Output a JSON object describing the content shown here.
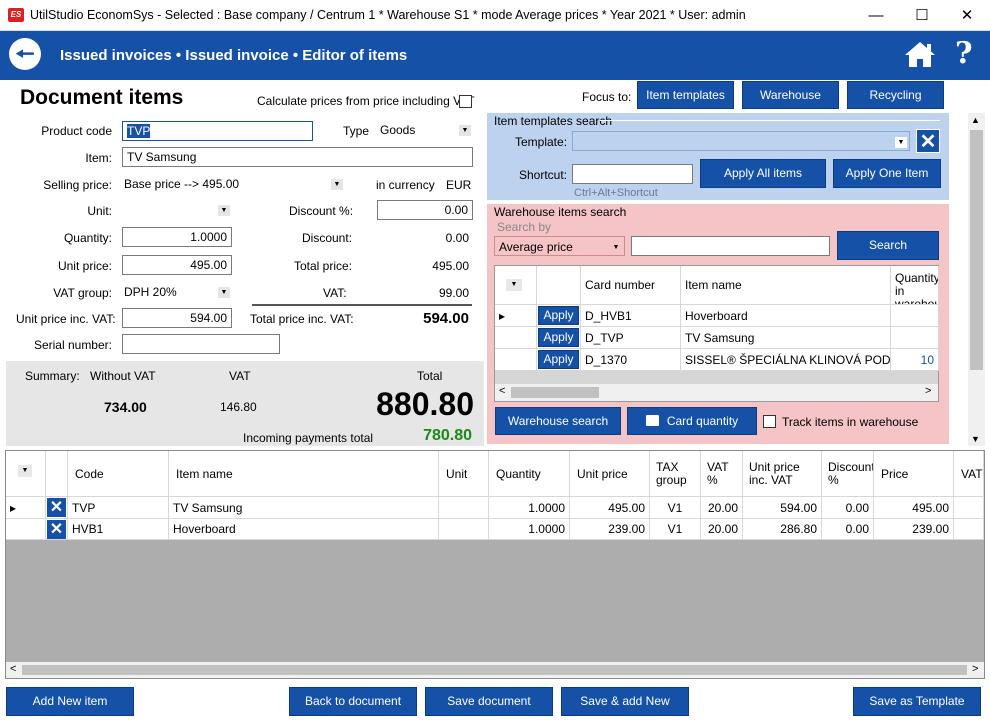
{
  "window": {
    "app_icon": "ES",
    "title": "UtilStudio EconomSys - Selected : Base company / Centrum 1 * Warehouse S1 * mode Average prices * Year 2021 * User: admin",
    "minimize": "—",
    "maximize": "☐",
    "close": "✕"
  },
  "header": {
    "back_icon": "arrow-left-icon",
    "breadcrumb": "Issued invoices • Issued invoice • Editor of items",
    "home_icon": "home-icon",
    "help": "?"
  },
  "colors": {
    "accent": "#1651a8",
    "blue_panel": "#bcd2ee",
    "pink_panel": "#f5c4c6",
    "green_total": "#1a8a1a"
  },
  "form": {
    "heading": "Document items",
    "calc_from_vat_label": "Calculate prices from price including VAT",
    "calc_from_vat_checked": false,
    "product_code_label": "Product code",
    "product_code_value": "TVP",
    "type_label": "Type",
    "type_value": "Goods",
    "item_label": "Item:",
    "item_value": "TV Samsung",
    "selling_price_label": "Selling price:",
    "selling_price_value": "Base price --> 495.00",
    "currency_label": "in currency",
    "currency_value": "EUR",
    "unit_label": "Unit:",
    "unit_value": "",
    "discount_pct_label": "Discount %:",
    "discount_pct_value": "0.00",
    "quantity_label": "Quantity:",
    "quantity_value": "1.0000",
    "discount_label": "Discount:",
    "discount_value": "0.00",
    "unit_price_label": "Unit price:",
    "unit_price_value": "495.00",
    "total_price_label": "Total price:",
    "total_price_value": "495.00",
    "vat_group_label": "VAT group:",
    "vat_group_value": "DPH 20%",
    "vat_label": "VAT:",
    "vat_value": "99.00",
    "unit_price_vat_label": "Unit price inc. VAT:",
    "unit_price_vat_value": "594.00",
    "total_price_vat_label": "Total price inc. VAT:",
    "total_price_vat_value": "594.00",
    "serial_label": "Serial number:",
    "serial_value": ""
  },
  "summary": {
    "label": "Summary:",
    "without_vat_label": "Without VAT",
    "vat_label": "VAT",
    "total_label": "Total",
    "without_vat_value": "734.00",
    "vat_value": "146.80",
    "total_value": "880.80",
    "incoming_label": "Incoming payments total",
    "incoming_value": "780.80"
  },
  "focus": {
    "label": "Focus to:",
    "item_templates": "Item templates",
    "warehouse": "Warehouse",
    "recycling": "Recycling"
  },
  "templates": {
    "title": "Item templates search",
    "template_label": "Template:",
    "template_value": "",
    "shortcut_label": "Shortcut:",
    "shortcut_value": "",
    "shortcut_hint": "Ctrl+Alt+Shortcut",
    "apply_all": "Apply All items",
    "apply_one": "Apply One Item",
    "clear_icon": "close-icon"
  },
  "warehouse": {
    "title": "Warehouse items search",
    "search_by_label": "Search by",
    "search_by_value": "Average price",
    "search_value": "",
    "search_button": "Search",
    "columns": [
      "Card number",
      "Item name",
      "Quantity in warehouse"
    ],
    "rows": [
      {
        "apply": "Apply",
        "card": "D_HVB1",
        "name": "Hoverboard",
        "qty": ""
      },
      {
        "apply": "Apply",
        "card": "D_TVP",
        "name": "TV Samsung",
        "qty": ""
      },
      {
        "apply": "Apply",
        "card": "D_1370",
        "name": "SISSEL® ŠPECIÁLNA KLINOVÁ PODL...",
        "qty": "10"
      }
    ],
    "warehouse_search_button": "Warehouse search",
    "card_quantity_button": "Card quantity",
    "track_label": "Track items in warehouse",
    "track_checked": false
  },
  "items_table": {
    "columns": [
      "Code",
      "Item name",
      "Unit",
      "Quantity",
      "Unit price",
      "TAX group",
      "VAT %",
      "Unit price inc. VAT",
      "Discount %",
      "Price",
      "VAT"
    ],
    "rows": [
      {
        "code": "TVP",
        "name": "TV Samsung",
        "unit": "",
        "qty": "1.0000",
        "unit_price": "495.00",
        "tax": "V1",
        "vat_pct": "20.00",
        "upv": "594.00",
        "disc": "0.00",
        "price": "495.00"
      },
      {
        "code": "HVB1",
        "name": "Hoverboard",
        "unit": "",
        "qty": "1.0000",
        "unit_price": "239.00",
        "tax": "V1",
        "vat_pct": "20.00",
        "upv": "286.80",
        "disc": "0.00",
        "price": "239.00"
      }
    ]
  },
  "footer": {
    "add_new": "Add New item",
    "back": "Back to document",
    "save": "Save document",
    "save_add": "Save & add New",
    "save_template": "Save as Template"
  }
}
